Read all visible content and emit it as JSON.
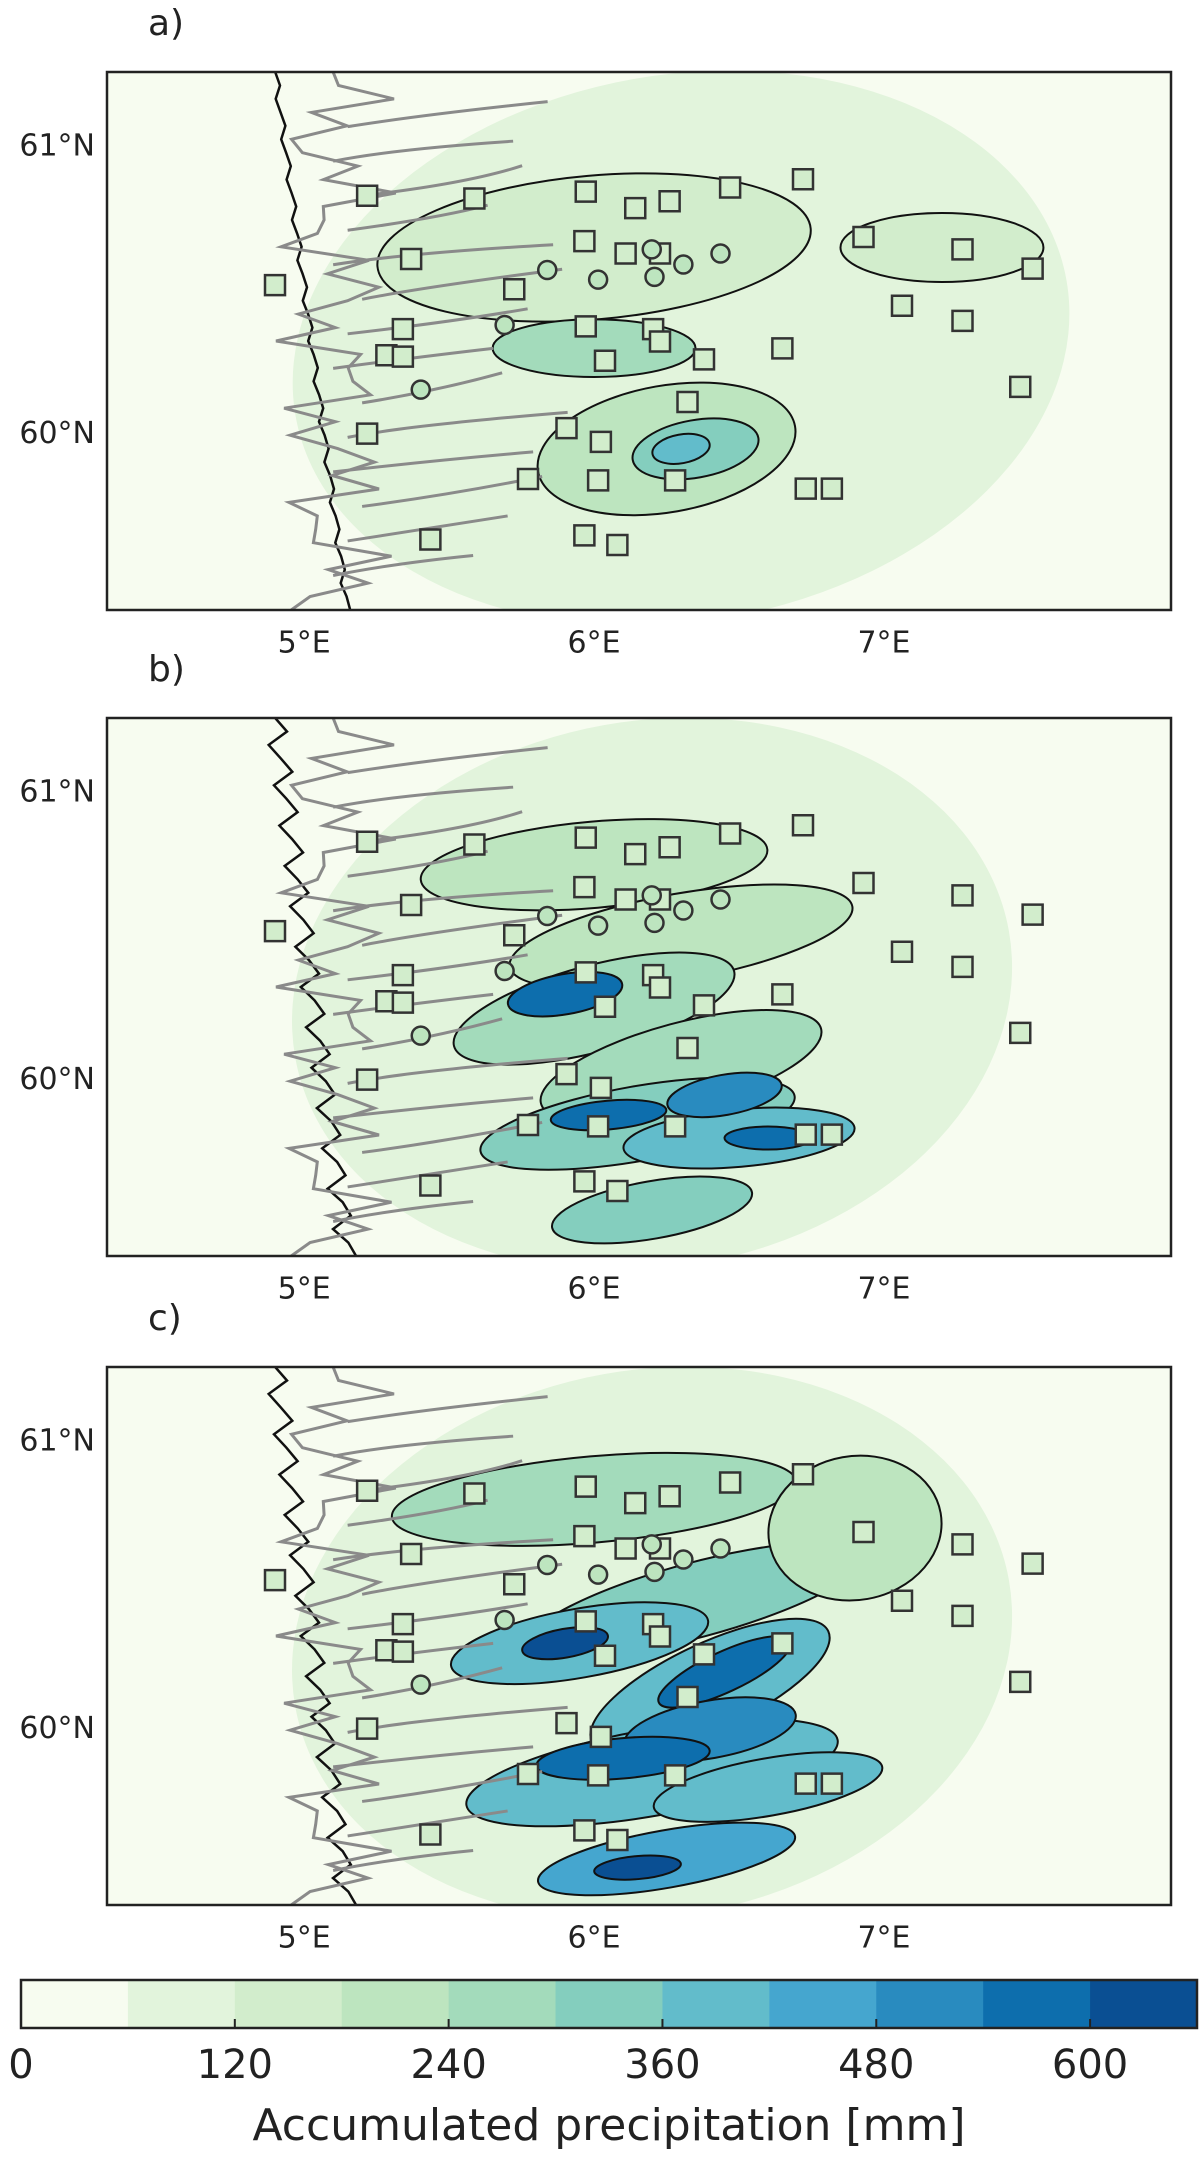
{
  "panels": [
    {
      "label": "a)"
    },
    {
      "label": "b)"
    },
    {
      "label": "c)"
    }
  ],
  "map": {
    "xlim": [
      4.32,
      7.99
    ],
    "ylim": [
      59.39,
      61.26
    ],
    "xticks": [
      {
        "value": 5,
        "label": "5°E"
      },
      {
        "value": 6,
        "label": "6°E"
      },
      {
        "value": 7,
        "label": "7°E"
      }
    ],
    "yticks": [
      {
        "value": 60,
        "label": "60°N"
      },
      {
        "value": 61,
        "label": "61°N"
      }
    ]
  },
  "colorbar": {
    "label": "Accumulated precipitation [mm]",
    "levels": [
      0,
      60,
      120,
      180,
      240,
      300,
      360,
      420,
      480,
      540,
      600,
      660
    ],
    "colors": [
      "#f7fcf0",
      "#e2f4dc",
      "#d2edcc",
      "#bde5bf",
      "#a3dbbb",
      "#84cebe",
      "#62bccb",
      "#45a6cf",
      "#298bbf",
      "#0d6ead",
      "#0a4f93",
      "#1b3a78"
    ],
    "ticks": [
      0,
      120,
      240,
      360,
      480,
      600
    ]
  }
}
